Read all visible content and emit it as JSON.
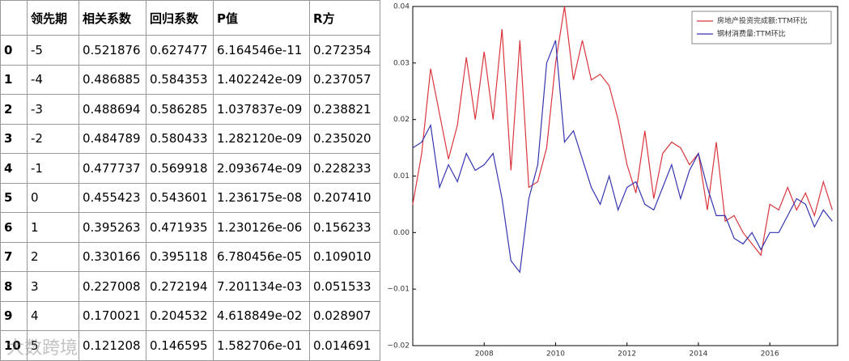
{
  "table": {
    "columns": [
      "领先期",
      "相关系数",
      "回归系数",
      "P值",
      "R方"
    ],
    "rows": [
      {
        "index": "0",
        "cells": [
          "-5",
          "0.521876",
          "0.627477",
          "6.164546e-11",
          "0.272354"
        ]
      },
      {
        "index": "1",
        "cells": [
          "-4",
          "0.486885",
          "0.584353",
          "1.402242e-09",
          "0.237057"
        ]
      },
      {
        "index": "2",
        "cells": [
          "-3",
          "0.488694",
          "0.586285",
          "1.037837e-09",
          "0.238821"
        ]
      },
      {
        "index": "3",
        "cells": [
          "-2",
          "0.484789",
          "0.580433",
          "1.282120e-09",
          "0.235020"
        ]
      },
      {
        "index": "4",
        "cells": [
          "-1",
          "0.477737",
          "0.569918",
          "2.093674e-09",
          "0.228233"
        ]
      },
      {
        "index": "5",
        "cells": [
          "0",
          "0.455423",
          "0.543601",
          "1.236175e-08",
          "0.207410"
        ]
      },
      {
        "index": "6",
        "cells": [
          "1",
          "0.395263",
          "0.471935",
          "1.230126e-06",
          "0.156233"
        ]
      },
      {
        "index": "7",
        "cells": [
          "2",
          "0.330166",
          "0.395118",
          "6.780456e-05",
          "0.109010"
        ]
      },
      {
        "index": "8",
        "cells": [
          "3",
          "0.227008",
          "0.272194",
          "7.201134e-03",
          "0.051533"
        ]
      },
      {
        "index": "9",
        "cells": [
          "4",
          "0.170021",
          "0.204532",
          "4.618849e-02",
          "0.028907"
        ]
      },
      {
        "index": "10",
        "cells": [
          "5",
          "0.121208",
          "0.146595",
          "1.582706e-01",
          "0.014691"
        ]
      }
    ]
  },
  "watermark": "大数跨境",
  "chart_data": {
    "type": "line",
    "x": [
      2006,
      2006.25,
      2006.5,
      2006.75,
      2007,
      2007.25,
      2007.5,
      2007.75,
      2008,
      2008.25,
      2008.5,
      2008.75,
      2009,
      2009.25,
      2009.5,
      2009.75,
      2010,
      2010.25,
      2010.5,
      2010.75,
      2011,
      2011.25,
      2011.5,
      2011.75,
      2012,
      2012.25,
      2012.5,
      2012.75,
      2013,
      2013.25,
      2013.5,
      2013.75,
      2014,
      2014.25,
      2014.5,
      2014.75,
      2015,
      2015.25,
      2015.5,
      2015.75,
      2016,
      2016.25,
      2016.5,
      2016.75,
      2017,
      2017.25,
      2017.5,
      2017.75
    ],
    "series": [
      {
        "name": "房地产投资完成额:TTM环比",
        "color": "#d9363e",
        "values": [
          0.005,
          0.014,
          0.029,
          0.021,
          0.013,
          0.019,
          0.031,
          0.02,
          0.032,
          0.02,
          0.036,
          0.011,
          0.034,
          0.008,
          0.009,
          0.015,
          0.03,
          0.04,
          0.027,
          0.034,
          0.027,
          0.028,
          0.026,
          0.02,
          0.012,
          0.007,
          0.018,
          0.006,
          0.014,
          0.016,
          0.015,
          0.012,
          0.014,
          0.004,
          0.016,
          0.002,
          0.003,
          0.0,
          -0.002,
          -0.004,
          0.005,
          0.004,
          0.008,
          0.004,
          0.007,
          0.003,
          0.009,
          0.004
        ]
      },
      {
        "name": "钢材消费量:TTM环比",
        "color": "#3535b0",
        "values": [
          0.015,
          0.016,
          0.019,
          0.008,
          0.012,
          0.009,
          0.014,
          0.011,
          0.012,
          0.014,
          0.006,
          -0.005,
          -0.007,
          0.006,
          0.012,
          0.03,
          0.034,
          0.016,
          0.018,
          0.013,
          0.008,
          0.005,
          0.01,
          0.004,
          0.008,
          0.009,
          0.005,
          0.004,
          0.008,
          0.012,
          0.006,
          0.011,
          0.014,
          0.008,
          0.003,
          0.003,
          -0.001,
          -0.002,
          0.0,
          -0.003,
          0.0,
          0.0,
          0.003,
          0.006,
          0.005,
          0.001,
          0.004,
          0.002
        ]
      }
    ],
    "xlim": [
      2006,
      2017.9
    ],
    "ylim": [
      -0.02,
      0.04
    ],
    "xticks": [
      2008,
      2010,
      2012,
      2014,
      2016
    ],
    "yticks": [
      {
        "value": -0.02,
        "label": "−0.02"
      },
      {
        "value": -0.01,
        "label": "−0.01"
      },
      {
        "value": 0,
        "label": "0.00"
      },
      0.01,
      0.02,
      0.03,
      0.04
    ],
    "legend": "upper right"
  }
}
